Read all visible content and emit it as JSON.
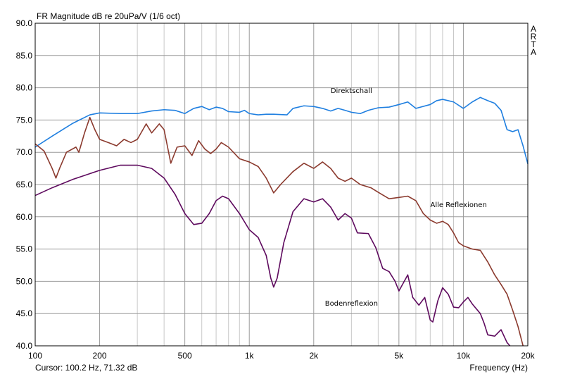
{
  "chart_data": {
    "type": "line",
    "title": "FR Magnitude dB re 20uPa/V (1/6 oct)",
    "xlabel": "Frequency (Hz)",
    "ylabel": "",
    "x_scale": "log",
    "xlim": [
      100,
      20000
    ],
    "ylim": [
      40,
      90
    ],
    "grid": true,
    "y_ticks": [
      "40.0",
      "45.0",
      "50.0",
      "55.0",
      "60.0",
      "65.0",
      "70.0",
      "75.0",
      "80.0",
      "85.0",
      "90.0"
    ],
    "x_ticks": [
      {
        "value": 100,
        "label": "100"
      },
      {
        "value": 200,
        "label": "200"
      },
      {
        "value": 500,
        "label": "500"
      },
      {
        "value": 1000,
        "label": "1k"
      },
      {
        "value": 2000,
        "label": "2k"
      },
      {
        "value": 5000,
        "label": "5k"
      },
      {
        "value": 10000,
        "label": "10k"
      },
      {
        "value": 20000,
        "label": "20k"
      }
    ],
    "watermark": [
      "A",
      "R",
      "T",
      "A"
    ],
    "cursor_text": "Cursor: 100.2 Hz, 71.32 dB",
    "series": [
      {
        "name": "Direktschall",
        "color": "#1f7fe0",
        "points": [
          [
            100,
            70.8
          ],
          [
            120,
            72.5
          ],
          [
            150,
            74.5
          ],
          [
            180,
            75.8
          ],
          [
            200,
            76.1
          ],
          [
            250,
            76.0
          ],
          [
            300,
            76.0
          ],
          [
            350,
            76.4
          ],
          [
            400,
            76.6
          ],
          [
            450,
            76.5
          ],
          [
            500,
            76.0
          ],
          [
            550,
            76.8
          ],
          [
            600,
            77.1
          ],
          [
            650,
            76.6
          ],
          [
            700,
            77.0
          ],
          [
            750,
            76.8
          ],
          [
            800,
            76.3
          ],
          [
            900,
            76.2
          ],
          [
            950,
            76.5
          ],
          [
            1000,
            76.0
          ],
          [
            1100,
            75.8
          ],
          [
            1200,
            75.9
          ],
          [
            1300,
            75.9
          ],
          [
            1500,
            75.8
          ],
          [
            1600,
            76.8
          ],
          [
            1800,
            77.2
          ],
          [
            2000,
            77.1
          ],
          [
            2200,
            76.8
          ],
          [
            2400,
            76.4
          ],
          [
            2600,
            76.8
          ],
          [
            2800,
            76.5
          ],
          [
            3000,
            76.2
          ],
          [
            3300,
            76.0
          ],
          [
            3600,
            76.5
          ],
          [
            4000,
            76.9
          ],
          [
            4500,
            77.0
          ],
          [
            5000,
            77.4
          ],
          [
            5500,
            77.8
          ],
          [
            6000,
            76.8
          ],
          [
            7000,
            77.4
          ],
          [
            7500,
            78.0
          ],
          [
            8000,
            78.2
          ],
          [
            8500,
            78.0
          ],
          [
            9000,
            77.8
          ],
          [
            10000,
            76.8
          ],
          [
            11000,
            77.8
          ],
          [
            12000,
            78.5
          ],
          [
            13000,
            78.0
          ],
          [
            14000,
            77.6
          ],
          [
            15000,
            76.5
          ],
          [
            16000,
            73.5
          ],
          [
            17000,
            73.2
          ],
          [
            18000,
            73.5
          ],
          [
            19000,
            71.0
          ],
          [
            20000,
            68.2
          ]
        ]
      },
      {
        "name": "Alle Reflexionen",
        "color": "#8b3a2e",
        "points": [
          [
            100,
            71.3
          ],
          [
            110,
            70.2
          ],
          [
            120,
            67.5
          ],
          [
            125,
            66.0
          ],
          [
            130,
            67.5
          ],
          [
            140,
            70.0
          ],
          [
            155,
            70.8
          ],
          [
            160,
            70.0
          ],
          [
            170,
            73.0
          ],
          [
            180,
            75.4
          ],
          [
            190,
            73.5
          ],
          [
            200,
            72.0
          ],
          [
            220,
            71.5
          ],
          [
            240,
            71.0
          ],
          [
            260,
            72.0
          ],
          [
            280,
            71.5
          ],
          [
            300,
            72.0
          ],
          [
            330,
            74.4
          ],
          [
            350,
            73.0
          ],
          [
            380,
            74.4
          ],
          [
            400,
            73.5
          ],
          [
            430,
            68.3
          ],
          [
            460,
            70.8
          ],
          [
            500,
            71.0
          ],
          [
            540,
            69.5
          ],
          [
            580,
            71.8
          ],
          [
            620,
            70.5
          ],
          [
            660,
            69.8
          ],
          [
            700,
            70.5
          ],
          [
            740,
            71.5
          ],
          [
            800,
            70.8
          ],
          [
            900,
            69.0
          ],
          [
            1000,
            68.5
          ],
          [
            1100,
            67.8
          ],
          [
            1200,
            66.0
          ],
          [
            1300,
            63.7
          ],
          [
            1400,
            65.0
          ],
          [
            1600,
            67.0
          ],
          [
            1800,
            68.3
          ],
          [
            2000,
            67.5
          ],
          [
            2200,
            68.5
          ],
          [
            2400,
            67.5
          ],
          [
            2600,
            66.0
          ],
          [
            2800,
            65.5
          ],
          [
            3000,
            66.0
          ],
          [
            3300,
            65.0
          ],
          [
            3700,
            64.5
          ],
          [
            4000,
            63.8
          ],
          [
            4500,
            62.8
          ],
          [
            5000,
            63.0
          ],
          [
            5500,
            63.2
          ],
          [
            6000,
            62.5
          ],
          [
            6500,
            60.5
          ],
          [
            7000,
            59.5
          ],
          [
            7500,
            59.0
          ],
          [
            8000,
            59.3
          ],
          [
            8500,
            58.8
          ],
          [
            9000,
            57.5
          ],
          [
            9500,
            56.0
          ],
          [
            10000,
            55.5
          ],
          [
            11000,
            55.0
          ],
          [
            12000,
            54.8
          ],
          [
            13000,
            53.0
          ],
          [
            14000,
            51.0
          ],
          [
            15000,
            49.5
          ],
          [
            16000,
            48.0
          ],
          [
            17000,
            45.5
          ],
          [
            18000,
            43.0
          ],
          [
            19000,
            40.0
          ]
        ]
      },
      {
        "name": "Bodenreflexion",
        "color": "#5e0a5e",
        "points": [
          [
            100,
            63.3
          ],
          [
            120,
            64.5
          ],
          [
            150,
            65.8
          ],
          [
            200,
            67.2
          ],
          [
            250,
            68.0
          ],
          [
            300,
            68.0
          ],
          [
            350,
            67.5
          ],
          [
            400,
            66.0
          ],
          [
            450,
            63.5
          ],
          [
            500,
            60.5
          ],
          [
            550,
            58.8
          ],
          [
            600,
            59.0
          ],
          [
            650,
            60.5
          ],
          [
            700,
            62.5
          ],
          [
            750,
            63.2
          ],
          [
            800,
            62.8
          ],
          [
            900,
            60.5
          ],
          [
            1000,
            58.0
          ],
          [
            1100,
            56.8
          ],
          [
            1200,
            54.0
          ],
          [
            1260,
            50.5
          ],
          [
            1300,
            49.1
          ],
          [
            1350,
            50.5
          ],
          [
            1450,
            56.0
          ],
          [
            1600,
            60.8
          ],
          [
            1800,
            62.8
          ],
          [
            2000,
            62.3
          ],
          [
            2200,
            62.8
          ],
          [
            2400,
            61.5
          ],
          [
            2600,
            59.5
          ],
          [
            2800,
            60.5
          ],
          [
            3000,
            59.8
          ],
          [
            3200,
            57.5
          ],
          [
            3600,
            57.4
          ],
          [
            3900,
            55.2
          ],
          [
            4200,
            52.0
          ],
          [
            4500,
            51.5
          ],
          [
            4800,
            50.0
          ],
          [
            5000,
            48.5
          ],
          [
            5500,
            51.0
          ],
          [
            5800,
            47.5
          ],
          [
            6200,
            46.3
          ],
          [
            6600,
            47.5
          ],
          [
            7000,
            44.0
          ],
          [
            7200,
            43.7
          ],
          [
            7600,
            47.0
          ],
          [
            8000,
            49.0
          ],
          [
            8500,
            48.0
          ],
          [
            9000,
            46.0
          ],
          [
            9500,
            45.9
          ],
          [
            10000,
            46.8
          ],
          [
            10500,
            47.5
          ],
          [
            11000,
            46.5
          ],
          [
            12000,
            45.0
          ],
          [
            12500,
            43.5
          ],
          [
            13000,
            41.7
          ],
          [
            14000,
            41.5
          ],
          [
            15000,
            42.5
          ],
          [
            16000,
            40.5
          ],
          [
            16500,
            40.0
          ]
        ]
      }
    ],
    "annotations": [
      {
        "text": "Direktschall",
        "x": 3000,
        "y": 79.2
      },
      {
        "text": "Alle Reflexionen",
        "x": 9500,
        "y": 61.5
      },
      {
        "text": "Bodenreflexion",
        "x": 3000,
        "y": 46.2
      }
    ]
  }
}
